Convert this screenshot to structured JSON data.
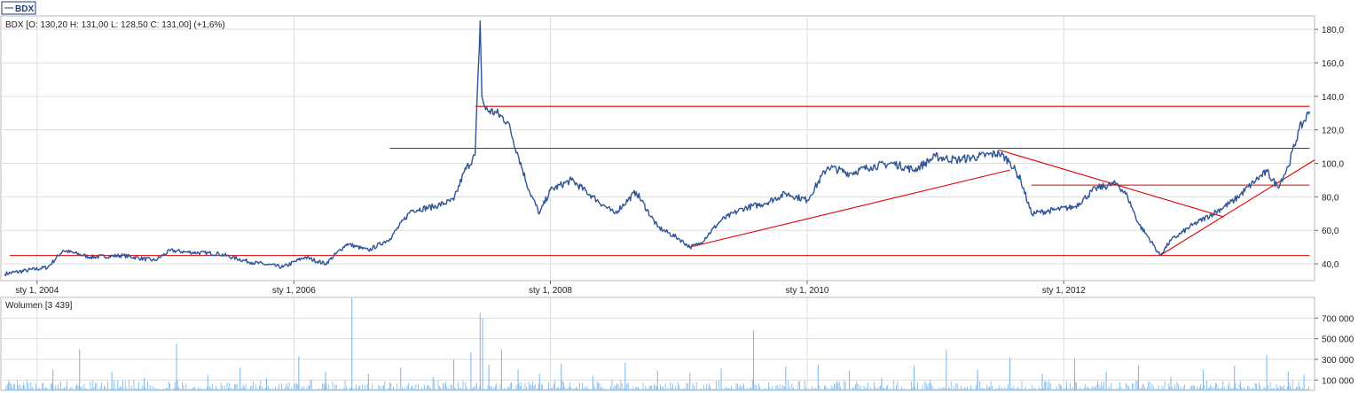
{
  "tab": {
    "label": "BDX"
  },
  "chart_data": [
    {
      "type": "line",
      "symbol": "BDX",
      "legend": "BDX [O: 130,20  H: 131,00  L: 128,50  C: 131,00] (+1,6%)",
      "x_ticks": [
        "sty 1, 2004",
        "sty 1, 2006",
        "sty 1, 2008",
        "sty 1, 2010",
        "sty 1, 2012"
      ],
      "y_ticks": [
        "40,0",
        "60,0",
        "80,0",
        "100,0",
        "120,0",
        "140,0",
        "160,0",
        "180,0"
      ],
      "ylim": [
        30,
        188
      ],
      "xlim": [
        "2003-09-20",
        "2013-12-15"
      ],
      "grid": true,
      "series": [
        {
          "color": "#2f5597",
          "x": [
            "2003-10-01",
            "2003-12-01",
            "2004-02-01",
            "2004-03-15",
            "2004-06-01",
            "2004-09-01",
            "2004-12-01",
            "2005-01-15",
            "2005-03-01",
            "2005-06-01",
            "2005-09-01",
            "2005-12-01",
            "2006-02-01",
            "2006-04-01",
            "2006-06-01",
            "2006-08-01",
            "2006-10-01",
            "2006-12-01",
            "2007-02-01",
            "2007-04-01",
            "2007-05-01",
            "2007-06-01",
            "2007-06-15",
            "2007-06-20",
            "2007-07-01",
            "2007-08-01",
            "2007-09-01",
            "2007-10-01",
            "2007-11-01",
            "2007-12-01",
            "2008-01-01",
            "2008-03-01",
            "2008-05-01",
            "2008-07-01",
            "2008-09-01",
            "2008-11-01",
            "2009-01-01",
            "2009-02-01",
            "2009-03-01",
            "2009-05-01",
            "2009-07-01",
            "2009-09-01",
            "2009-11-01",
            "2010-01-01",
            "2010-03-01",
            "2010-05-01",
            "2010-07-01",
            "2010-09-01",
            "2010-11-01",
            "2011-01-01",
            "2011-03-01",
            "2011-05-01",
            "2011-07-01",
            "2011-08-01",
            "2011-09-01",
            "2011-10-01",
            "2011-12-01",
            "2012-02-01",
            "2012-04-01",
            "2012-06-01",
            "2012-07-01",
            "2012-08-01",
            "2012-09-01",
            "2012-10-01",
            "2012-11-01",
            "2013-01-01",
            "2013-03-01",
            "2013-05-01",
            "2013-07-01",
            "2013-08-01",
            "2013-09-01",
            "2013-10-01",
            "2013-11-01",
            "2013-12-01"
          ],
          "y": [
            34,
            36,
            38,
            48,
            44,
            45,
            42,
            48,
            47,
            46,
            41,
            38,
            44,
            40,
            52,
            48,
            55,
            72,
            74,
            78,
            95,
            105,
            185,
            140,
            132,
            130,
            125,
            105,
            84,
            70,
            84,
            90,
            80,
            70,
            83,
            62,
            55,
            50,
            52,
            66,
            73,
            76,
            82,
            78,
            98,
            94,
            98,
            100,
            96,
            104,
            102,
            104,
            106,
            101,
            90,
            70,
            72,
            74,
            85,
            88,
            80,
            64,
            55,
            45,
            54,
            63,
            70,
            78,
            90,
            95,
            86,
            98,
            120,
            131
          ]
        }
      ],
      "lines": [
        {
          "color": "#e00000",
          "x": [
            "2007-06-01",
            "2013-12-01"
          ],
          "y": [
            134,
            134
          ]
        },
        {
          "color": "#e00000",
          "x": [
            "2006-10-01",
            "2013-12-01"
          ],
          "y": [
            109,
            109
          ]
        },
        {
          "color": "#e00000",
          "x": [
            "2003-10-15",
            "2013-12-01"
          ],
          "y": [
            45,
            45
          ]
        },
        {
          "color": "#e00000",
          "x": [
            "2011-10-01",
            "2013-12-01"
          ],
          "y": [
            87,
            87
          ]
        },
        {
          "color": "#e00000",
          "x": [
            "2009-02-01",
            "2011-08-01"
          ],
          "y": [
            50,
            96
          ]
        },
        {
          "color": "#e00000",
          "x": [
            "2011-07-01",
            "2013-04-01"
          ],
          "y": [
            108,
            68
          ]
        },
        {
          "color": "#e00000",
          "x": [
            "2012-10-01",
            "2013-12-15"
          ],
          "y": [
            45,
            102
          ]
        }
      ]
    },
    {
      "type": "bar",
      "legend": "Wolumen [3 439]",
      "y_ticks": [
        "100 000",
        "300 000",
        "500 000",
        "700 000"
      ],
      "ylim": [
        0,
        900000
      ],
      "grid": true,
      "color": "#7ab4e8",
      "series": [
        {
          "x": [
            "2003-10-15",
            "2004-02-15",
            "2004-05-01",
            "2004-08-01",
            "2004-11-01",
            "2005-02-01",
            "2005-05-01",
            "2005-08-01",
            "2005-10-15",
            "2006-01-15",
            "2006-04-01",
            "2006-06-15",
            "2006-08-01",
            "2006-11-01",
            "2007-02-01",
            "2007-04-01",
            "2007-05-20",
            "2007-06-15",
            "2007-06-22",
            "2007-07-10",
            "2007-08-15",
            "2007-10-01",
            "2007-12-01",
            "2008-02-01",
            "2008-05-01",
            "2008-08-01",
            "2008-11-01",
            "2009-02-01",
            "2009-05-01",
            "2009-08-01",
            "2009-11-01",
            "2010-02-01",
            "2010-05-01",
            "2010-08-01",
            "2010-11-01",
            "2011-02-01",
            "2011-05-01",
            "2011-08-01",
            "2011-11-01",
            "2012-02-01",
            "2012-05-01",
            "2012-08-01",
            "2012-11-01",
            "2013-02-01",
            "2013-05-01",
            "2013-08-01",
            "2013-10-01",
            "2013-11-15"
          ],
          "values": [
            60000,
            200000,
            400000,
            180000,
            120000,
            450000,
            150000,
            220000,
            120000,
            330000,
            180000,
            890000,
            160000,
            220000,
            130000,
            300000,
            370000,
            750000,
            700000,
            250000,
            400000,
            200000,
            160000,
            260000,
            140000,
            270000,
            190000,
            170000,
            210000,
            580000,
            230000,
            250000,
            190000,
            120000,
            240000,
            390000,
            200000,
            320000,
            160000,
            310000,
            180000,
            240000,
            130000,
            200000,
            240000,
            340000,
            180000,
            150000
          ]
        }
      ]
    }
  ]
}
